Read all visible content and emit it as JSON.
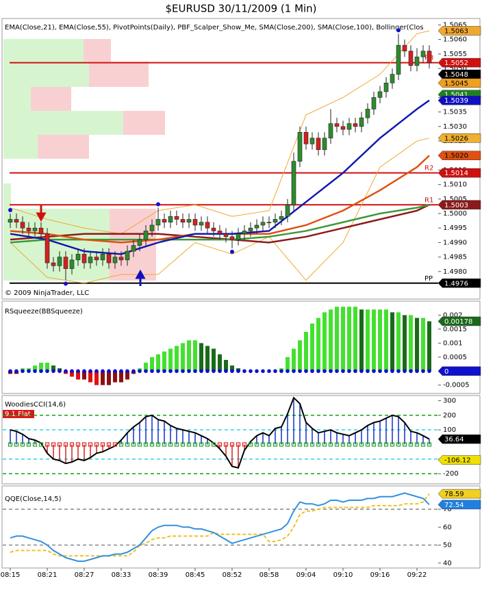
{
  "chart_data": [
    {
      "type": "candlestick",
      "title": "$EURUSD  30/11/2009 (1 Min)",
      "subtitle": "EMA(Close,21), EMA(Close,55), PivotPoints(Daily), PBF_Scalper_Show_Me, SMA(Close,200), SMA(Close,100), Bollinger(Clos",
      "annotation": "© 2009 NinjaTrader, LLC",
      "up_color": "#2e8b2e",
      "down_color": "#d42020",
      "open": [
        1.4997,
        1.4998,
        1.4997,
        1.4995,
        1.4994,
        1.4995,
        1.4993,
        1.4983,
        1.4982,
        1.4985,
        1.4981,
        1.4984,
        1.4986,
        1.4983,
        1.4985,
        1.4984,
        1.4986,
        1.4983,
        1.4985,
        1.4984,
        1.4987,
        1.4989,
        1.4991,
        1.4994,
        1.4996,
        1.4998,
        1.4997,
        1.4999,
        1.4998,
        1.4997,
        1.4998,
        1.4996,
        1.4997,
        1.4995,
        1.4994,
        1.4993,
        1.4992,
        1.4991,
        1.4993,
        1.4994,
        1.4995,
        1.4996,
        1.4997,
        1.4997,
        1.4998,
        1.4999,
        1.5003,
        1.5018,
        1.5028,
        1.5024,
        1.5026,
        1.5022,
        1.5026,
        1.5031,
        1.503,
        1.5029,
        1.5031,
        1.503,
        1.5033,
        1.5036,
        1.504,
        1.5042,
        1.5045,
        1.5048,
        1.5058,
        1.5056,
        1.5051,
        1.5054,
        1.5056
      ],
      "high": [
        1.5,
        1.5,
        1.4999,
        1.4997,
        1.4997,
        1.4997,
        1.4995,
        1.4985,
        1.4987,
        1.4987,
        1.4986,
        1.4988,
        1.4988,
        1.4987,
        1.4987,
        1.4988,
        1.4988,
        1.4987,
        1.4987,
        1.4989,
        1.4991,
        1.4993,
        1.4996,
        1.4998,
        1.5002,
        1.5,
        1.5001,
        1.5001,
        1.5,
        1.5,
        1.5,
        1.4999,
        1.4999,
        1.4997,
        1.4996,
        1.4995,
        1.4994,
        1.4995,
        1.4996,
        1.4997,
        1.4998,
        1.4999,
        1.4999,
        1.5,
        1.5001,
        1.5005,
        1.5021,
        1.503,
        1.503,
        1.5028,
        1.5028,
        1.5028,
        1.5036,
        1.5033,
        1.5032,
        1.5033,
        1.5033,
        1.5035,
        1.5038,
        1.5042,
        1.5044,
        1.5047,
        1.505,
        1.5062,
        1.506,
        1.5058,
        1.5057,
        1.5058,
        1.5058
      ],
      "low": [
        1.4995,
        1.4995,
        1.4993,
        1.4992,
        1.4992,
        1.4991,
        1.4981,
        1.498,
        1.498,
        1.4977,
        1.4979,
        1.4982,
        1.4981,
        1.4981,
        1.4982,
        1.4982,
        1.4981,
        1.4981,
        1.4982,
        1.4982,
        1.4985,
        1.4987,
        1.4989,
        1.4992,
        1.4994,
        1.4995,
        1.4995,
        1.4996,
        1.4995,
        1.4995,
        1.4994,
        1.4994,
        1.4993,
        1.4992,
        1.4991,
        1.499,
        1.4988,
        1.4989,
        1.4991,
        1.4992,
        1.4993,
        1.4994,
        1.4995,
        1.4995,
        1.4996,
        1.4997,
        1.5001,
        1.5016,
        1.5022,
        1.5022,
        1.502,
        1.502,
        1.5024,
        1.5028,
        1.5027,
        1.5027,
        1.5028,
        1.5028,
        1.5031,
        1.5034,
        1.5038,
        1.504,
        1.5043,
        1.5046,
        1.5054,
        1.5049,
        1.5049,
        1.5052,
        1.505
      ],
      "close": [
        1.4998,
        1.4997,
        1.4995,
        1.4994,
        1.4995,
        1.4993,
        1.4983,
        1.4982,
        1.4985,
        1.4981,
        1.4984,
        1.4986,
        1.4983,
        1.4985,
        1.4984,
        1.4986,
        1.4983,
        1.4985,
        1.4984,
        1.4987,
        1.4989,
        1.4991,
        1.4994,
        1.4996,
        1.4998,
        1.4997,
        1.4999,
        1.4998,
        1.4997,
        1.4998,
        1.4996,
        1.4997,
        1.4995,
        1.4994,
        1.4993,
        1.4992,
        1.4991,
        1.4993,
        1.4994,
        1.4995,
        1.4996,
        1.4997,
        1.4997,
        1.4998,
        1.4999,
        1.5003,
        1.5018,
        1.5028,
        1.5024,
        1.5026,
        1.5022,
        1.5026,
        1.5031,
        1.503,
        1.5029,
        1.5031,
        1.503,
        1.5033,
        1.5036,
        1.504,
        1.5042,
        1.5045,
        1.5048,
        1.5058,
        1.5056,
        1.5051,
        1.5054,
        1.5056,
        1.5052
      ],
      "swing_highs": [
        0,
        24,
        63
      ],
      "swing_lows": [
        9,
        36
      ],
      "overlays": [
        {
          "color": "#f0a830",
          "width": 1,
          "x": [
            0,
            6,
            12,
            18,
            24,
            30,
            36,
            42,
            48,
            54,
            60,
            66,
            68
          ],
          "values": [
            1.5002,
            1.4998,
            1.4995,
            1.4993,
            1.5001,
            1.5003,
            1.4999,
            1.5001,
            1.5034,
            1.504,
            1.5048,
            1.5062,
            1.5063
          ]
        },
        {
          "color": "#f0a830",
          "width": 1,
          "x": [
            0,
            6,
            12,
            18,
            24,
            30,
            36,
            42,
            48,
            54,
            60,
            66,
            68
          ],
          "values": [
            1.499,
            1.4978,
            1.4976,
            1.4979,
            1.4979,
            1.499,
            1.4986,
            1.4992,
            1.4977,
            1.499,
            1.5016,
            1.5025,
            1.5026
          ]
        },
        {
          "color": "#8b1a1a",
          "width": 2.5,
          "x": [
            0,
            6,
            12,
            18,
            24,
            30,
            36,
            42,
            48,
            54,
            60,
            66,
            68
          ],
          "values": [
            1.4991,
            1.4992,
            1.4993,
            1.4993,
            1.4993,
            1.4992,
            1.4991,
            1.499,
            1.4992,
            1.4995,
            1.4998,
            1.5001,
            1.5003
          ]
        },
        {
          "color": "#3a9a3a",
          "width": 2.5,
          "x": [
            0,
            6,
            12,
            18,
            24,
            30,
            36,
            42,
            48,
            54,
            60,
            66,
            68
          ],
          "values": [
            1.499,
            1.4991,
            1.4991,
            1.4991,
            1.4991,
            1.4991,
            1.4991,
            1.4992,
            1.4994,
            1.4997,
            1.5,
            1.5002,
            1.5003
          ]
        },
        {
          "color": "#e05010",
          "width": 2.5,
          "x": [
            0,
            6,
            12,
            18,
            24,
            30,
            36,
            42,
            48,
            54,
            60,
            66,
            68
          ],
          "values": [
            1.4994,
            1.4993,
            1.4991,
            1.499,
            1.4991,
            1.4993,
            1.4993,
            1.4993,
            1.4996,
            1.5001,
            1.5008,
            1.5016,
            1.502
          ]
        },
        {
          "color": "#1018b0",
          "width": 2.5,
          "x": [
            0,
            6,
            12,
            18,
            24,
            30,
            36,
            42,
            48,
            54,
            60,
            66,
            68
          ],
          "values": [
            1.4993,
            1.4991,
            1.4987,
            1.4986,
            1.499,
            1.4993,
            1.4993,
            1.4994,
            1.5004,
            1.5014,
            1.5026,
            1.5036,
            1.5039
          ]
        }
      ],
      "pivots": [
        {
          "label": "R3",
          "value": 1.5052,
          "color": "#d01010"
        },
        {
          "label": "R2",
          "value": 1.5014,
          "color": "#d01010"
        },
        {
          "label": "R1",
          "value": 1.5003,
          "color": "#d01010"
        },
        {
          "label": "PP",
          "value": 1.4976,
          "color": "#000000"
        }
      ],
      "ylim": [
        1.4975,
        1.5067
      ],
      "yticks": [
        {
          "value": 1.498,
          "label": "1.4980"
        },
        1.4985,
        {
          "value": 1.499,
          "label": "1.4990"
        },
        1.4995,
        {
          "value": 1.5,
          "label": "1.5000"
        },
        1.5005,
        {
          "value": 1.501,
          "label": "1.5010"
        },
        1.5015,
        {
          "value": 1.502,
          "label": "1.5020"
        },
        1.5025,
        {
          "value": 1.503,
          "label": "1.5030"
        },
        1.5035,
        {
          "value": 1.504,
          "label": "1.5040"
        },
        1.5045,
        {
          "value": 1.505,
          "label": "1.5050"
        },
        1.5055,
        {
          "value": 1.506,
          "label": "1.5060"
        },
        1.5065
      ],
      "tags": [
        {
          "value": 1.5063,
          "color": "#f0a830",
          "text_color": "#000000"
        },
        {
          "value": 1.5052,
          "color": "#d01010",
          "text_color": "#ffffff"
        },
        {
          "value": 1.5048,
          "color": "#000000",
          "text_color": "#ffffff"
        },
        {
          "value": 1.5045,
          "color": "#f0a020",
          "text_color": "#000000"
        },
        {
          "value": 1.5041,
          "color": "#208020",
          "text_color": "#ffffff"
        },
        {
          "value": 1.5039,
          "color": "#1010c0",
          "text_color": "#ffffff"
        },
        {
          "value": 1.5026,
          "color": "#f0b030",
          "text_color": "#000000"
        },
        {
          "value": 1.502,
          "label": "1.5020",
          "color": "#e05010",
          "text_color": "#000000"
        },
        {
          "value": 1.5014,
          "color": "#d01010",
          "text_color": "#ffffff"
        },
        {
          "value": 1.5003,
          "color": "#8b1a1a",
          "text_color": "#ffffff"
        },
        {
          "value": 1.4976,
          "color": "#000000",
          "text_color": "#ffffff"
        }
      ]
    },
    {
      "type": "bar",
      "title": "RSqueeze(BBSqueeze)",
      "values": [
        -0.0001,
        -0.0001,
        0.0001,
        0.0001,
        0.0002,
        0.0003,
        0.0003,
        0.0002,
        0.0001,
        -0.0001,
        -0.0002,
        -0.0003,
        -0.0003,
        -0.0004,
        -0.0005,
        -0.0005,
        -0.0005,
        -0.0004,
        -0.0004,
        -0.0003,
        -0.0001,
        0.0001,
        0.0003,
        0.0005,
        0.0006,
        0.0007,
        0.0008,
        0.0009,
        0.001,
        0.0011,
        0.0011,
        0.001,
        0.0009,
        0.0008,
        0.0006,
        0.0004,
        0.0002,
        0.0001,
        0,
        0,
        0,
        0,
        0,
        0,
        0.0001,
        0.0005,
        0.0008,
        0.0011,
        0.0014,
        0.0017,
        0.0019,
        0.0021,
        0.0022,
        0.0023,
        0.0023,
        0.0023,
        0.0023,
        0.0022,
        0.0022,
        0.0022,
        0.0022,
        0.0022,
        0.0021,
        0.0021,
        0.002,
        0.002,
        0.0019,
        0.0019,
        0.00178
      ],
      "colors": {
        "up_rising": "#44e030",
        "up_falling": "#1a6a1a",
        "down_falling": "#e01010",
        "down_rising": "#8b1010",
        "dot": "#1010d0"
      },
      "ylim": [
        -0.0008,
        0.0025
      ],
      "yticks": [
        -0.0005,
        0.0005,
        0.001,
        0.0015,
        0.002
      ],
      "tags": [
        {
          "value": 0.00178,
          "color": "#1a6a1a",
          "text_color": "#ffffff"
        },
        {
          "value": 0,
          "color": "#1010d0",
          "text_color": "#ffffff"
        }
      ]
    },
    {
      "type": "combo",
      "title": "WoodiesCCI(14,6)",
      "annotation": "9.1 Flat",
      "values": [
        100,
        90,
        70,
        40,
        30,
        10,
        -60,
        -100,
        -110,
        -130,
        -120,
        -100,
        -110,
        -90,
        -60,
        -50,
        -30,
        -10,
        30,
        80,
        120,
        150,
        190,
        200,
        170,
        160,
        130,
        110,
        100,
        90,
        80,
        60,
        40,
        10,
        -30,
        -80,
        -150,
        -160,
        -40,
        20,
        60,
        80,
        60,
        110,
        120,
        210,
        320,
        280,
        150,
        110,
        80,
        90,
        100,
        80,
        70,
        60,
        80,
        100,
        130,
        150,
        160,
        180,
        200,
        190,
        150,
        90,
        80,
        60,
        36.64
      ],
      "up_color": "#1030c0",
      "down_color": "#d02020",
      "line_color": "#000000",
      "levels": [
        {
          "value": 200,
          "color": "#10a010"
        },
        {
          "value": 100,
          "color": "#30d0e0"
        },
        {
          "value": -100,
          "color": "#30d0e0"
        },
        {
          "value": -200,
          "color": "#10a010"
        }
      ],
      "ylim": [
        -260,
        335
      ],
      "yticks": [
        -200,
        -100,
        100,
        200,
        300
      ],
      "tags": [
        {
          "value": 36.64,
          "color": "#000000",
          "text_color": "#ffffff"
        },
        {
          "value": -106.12,
          "color": "#f0e000",
          "text_color": "#000000"
        }
      ]
    },
    {
      "type": "line",
      "title": "QQE(Close,14,5)",
      "categories": [
        "08:15",
        null,
        null,
        null,
        null,
        null,
        "08:21",
        null,
        null,
        null,
        null,
        null,
        "08:27",
        null,
        null,
        null,
        null,
        null,
        "08:33",
        null,
        null,
        null,
        null,
        null,
        "08:39",
        null,
        null,
        null,
        null,
        null,
        "08:45",
        null,
        null,
        null,
        null,
        null,
        "08:52",
        null,
        null,
        null,
        null,
        null,
        "08:58",
        null,
        null,
        null,
        null,
        null,
        "09:04",
        null,
        null,
        null,
        null,
        null,
        "09:10",
        null,
        null,
        null,
        null,
        null,
        "09:16",
        null,
        null,
        null,
        null,
        null,
        "09:22",
        null,
        null
      ],
      "series": [
        {
          "color": "#f0c020",
          "dashed": true,
          "values": [
            46,
            47,
            47,
            47,
            47,
            47,
            47,
            45,
            44,
            44,
            44,
            44,
            44,
            44,
            44,
            44,
            44,
            44,
            44,
            44,
            46,
            50,
            51,
            53,
            54,
            54,
            55,
            55,
            55,
            55,
            55,
            55,
            55,
            57,
            56,
            56,
            56,
            56,
            56,
            56,
            56,
            56,
            52,
            52,
            53,
            55,
            60,
            67,
            69,
            69,
            70,
            71,
            71,
            71,
            71,
            71,
            71,
            71,
            71,
            72,
            72,
            72,
            72,
            72,
            73,
            73,
            73,
            74,
            78.59
          ]
        },
        {
          "color": "#3090e0",
          "dashed": false,
          "values": [
            54,
            55,
            55,
            54,
            53,
            52,
            50,
            47,
            45,
            43,
            42,
            41,
            41,
            42,
            43,
            44,
            44,
            45,
            45,
            46,
            48,
            50,
            54,
            58,
            60,
            61,
            61,
            61,
            60,
            60,
            59,
            59,
            58,
            57,
            55,
            53,
            51,
            52,
            53,
            54,
            55,
            56,
            57,
            58,
            59,
            62,
            69,
            74,
            73,
            73,
            72,
            73,
            75,
            75,
            74,
            75,
            75,
            75,
            76,
            76,
            77,
            77,
            77,
            78,
            79,
            78,
            77,
            76,
            72.54
          ]
        }
      ],
      "levels": [
        {
          "value": 70,
          "color": "#888888"
        },
        {
          "value": 50,
          "color": "#888888"
        }
      ],
      "ylim": [
        38,
        83
      ],
      "yticks": [
        40,
        50,
        60,
        70
      ],
      "tags": [
        {
          "value": 78.59,
          "color": "#f0d020",
          "text_color": "#000000"
        },
        {
          "value": 72.54,
          "color": "#2080e0",
          "text_color": "#ffffff"
        }
      ]
    }
  ]
}
